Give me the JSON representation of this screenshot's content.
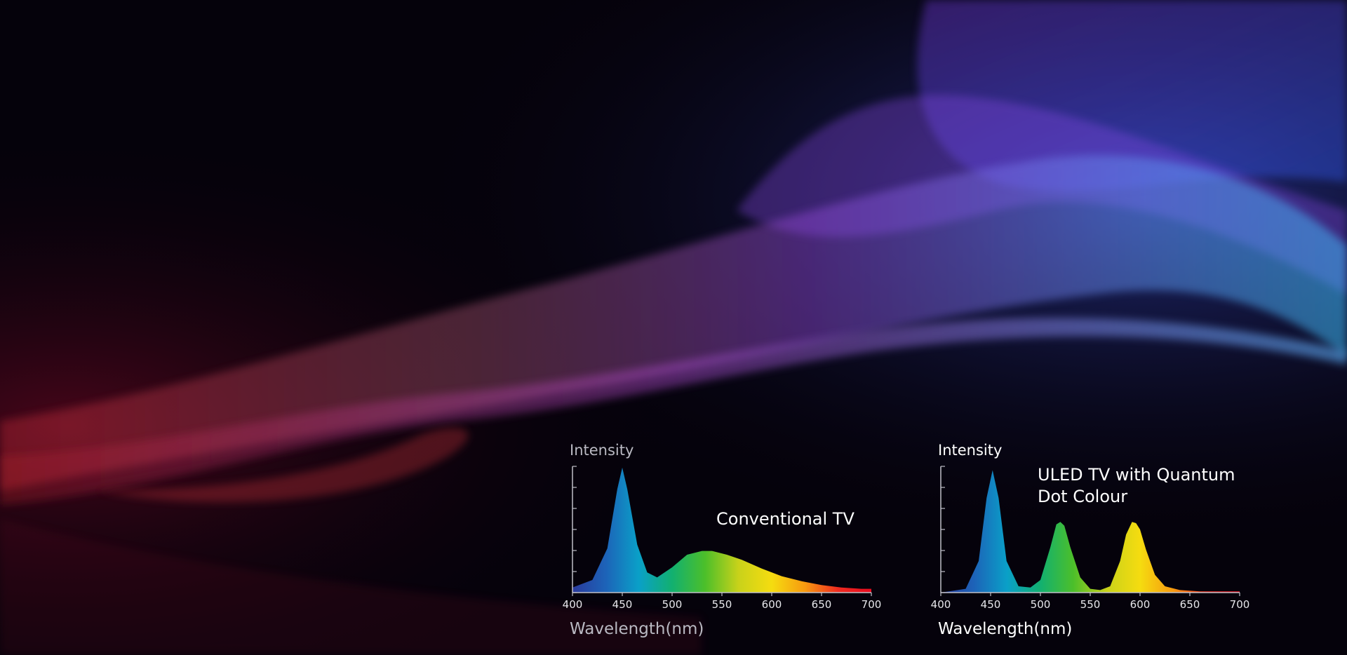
{
  "chart_data": [
    {
      "type": "area",
      "title": "Conventional TV",
      "xlabel": "Wavelength(nm)",
      "ylabel": "Intensity",
      "xlim": [
        400,
        700
      ],
      "ylim": [
        0,
        1
      ],
      "x_ticks": [
        "400",
        "450",
        "500",
        "550",
        "600",
        "650",
        "700"
      ],
      "series": [
        {
          "x": [
            400,
            420,
            435,
            445,
            450,
            455,
            465,
            475,
            485,
            500,
            515,
            530,
            540,
            555,
            570,
            590,
            610,
            630,
            650,
            670,
            690,
            700
          ],
          "y": [
            0.04,
            0.1,
            0.35,
            0.82,
            0.99,
            0.82,
            0.38,
            0.16,
            0.12,
            0.2,
            0.3,
            0.33,
            0.33,
            0.3,
            0.26,
            0.19,
            0.13,
            0.09,
            0.06,
            0.04,
            0.03,
            0.03
          ]
        }
      ]
    },
    {
      "type": "area",
      "title": "ULED TV with Quantum\nDot Colour",
      "xlabel": "Wavelength(nm)",
      "ylabel": "Intensity",
      "xlim": [
        400,
        700
      ],
      "ylim": [
        0,
        1
      ],
      "x_ticks": [
        "400",
        "450",
        "500",
        "550",
        "600",
        "650",
        "700"
      ],
      "series": [
        {
          "x": [
            400,
            425,
            438,
            446,
            452,
            458,
            466,
            478,
            490,
            500,
            510,
            516,
            520,
            524,
            530,
            540,
            550,
            560,
            570,
            580,
            586,
            592,
            596,
            600,
            606,
            615,
            625,
            640,
            660,
            680,
            700
          ],
          "y": [
            0.0,
            0.03,
            0.25,
            0.75,
            0.97,
            0.75,
            0.25,
            0.05,
            0.04,
            0.1,
            0.36,
            0.54,
            0.56,
            0.53,
            0.36,
            0.12,
            0.03,
            0.02,
            0.05,
            0.25,
            0.46,
            0.56,
            0.55,
            0.5,
            0.34,
            0.14,
            0.05,
            0.02,
            0.01,
            0.01,
            0.01
          ]
        }
      ]
    }
  ],
  "spectrum_colors": [
    "#2a3a9c",
    "#1d63b8",
    "#0aa0c8",
    "#12b070",
    "#4cbf2a",
    "#c9d21a",
    "#f5dc10",
    "#f79a10",
    "#ef2a20",
    "#e80a1e"
  ]
}
